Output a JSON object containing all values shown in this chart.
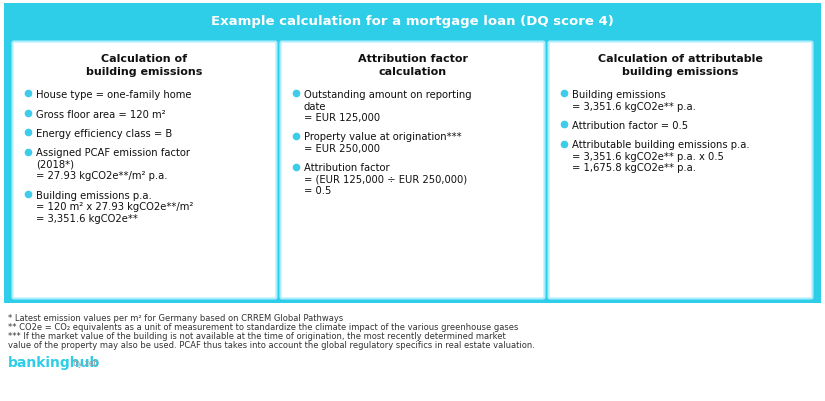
{
  "title": "Example calculation for a mortgage loan (DQ score 4)",
  "title_bg": "#2ecde8",
  "title_color": "#ffffff",
  "outer_bg": "#2ecde8",
  "panel_bg": "#ffffff",
  "bullet_color": "#3dccea",
  "columns": [
    {
      "header": "Calculation of\nbuilding emissions",
      "bullets": [
        "House type = one-family home",
        "Gross floor area = 120 m²",
        "Energy efficiency class = B",
        "Assigned PCAF emission factor\n(2018*)\n= 27.93 kgCO2e**/m² p.a.",
        "Building emissions p.a.\n= 120 m² x 27.93 kgCO2e**/m²\n= 3,351.6 kgCO2e**"
      ]
    },
    {
      "header": "Attribution factor\ncalculation",
      "bullets": [
        "Outstanding amount on reporting\ndate\n= EUR 125,000",
        "Property value at origination***\n= EUR 250,000",
        "Attribution factor\n= (EUR 125,000 ÷ EUR 250,000)\n= 0.5"
      ]
    },
    {
      "header": "Calculation of attributable\nbuilding emissions",
      "bullets": [
        "Building emissions\n= 3,351.6 kgCO2e** p.a.",
        "Attribution factor = 0.5",
        "Attributable building emissions p.a.\n= 3,351.6 kgCO2e** p.a. x 0.5\n= 1,675.8 kgCO2e** p.a."
      ]
    }
  ],
  "footnotes": [
    "* Latest emission values per m² for Germany based on CRREM Global Pathways",
    "** CO2e = CO₂ equivalents as a unit of measurement to standardize the climate impact of the various greenhouse gases",
    "*** If the market value of the building is not available at the time of origination, the most recently determined market value of the property may also be used. PCAF thus takes into account the global regulatory specifics in real estate valuation."
  ],
  "brand_text": "bankinghub",
  "brand_suffix": "by zeb",
  "brand_color": "#2ecde8",
  "brand_suffix_color": "#999999"
}
